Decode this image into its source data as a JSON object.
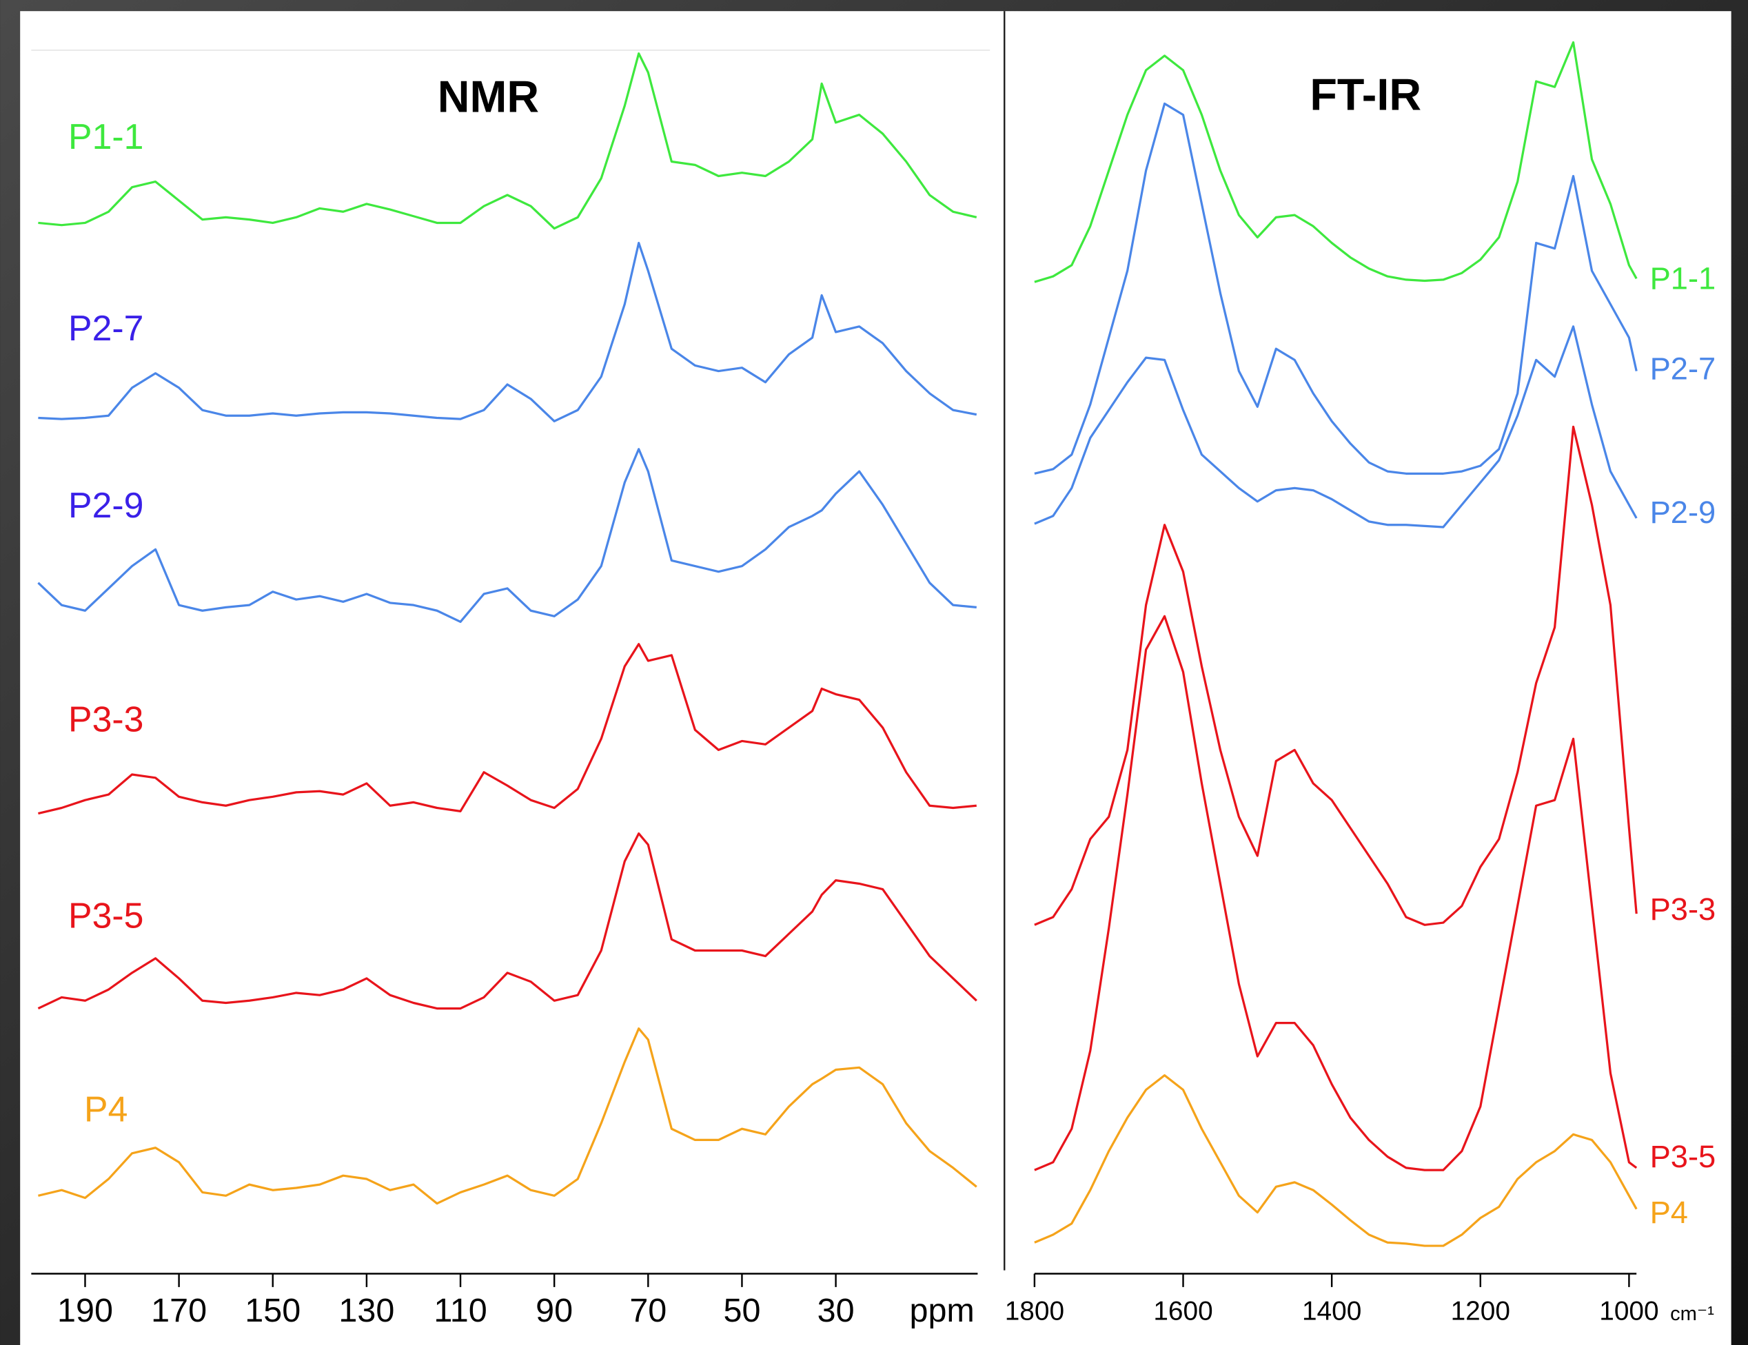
{
  "chart_data": [
    {
      "type": "line",
      "title": "NMR",
      "xlabel": "ppm",
      "x": [
        200,
        195,
        190,
        185,
        180,
        175,
        170,
        165,
        160,
        155,
        150,
        145,
        140,
        135,
        130,
        125,
        120,
        115,
        110,
        105,
        100,
        95,
        90,
        85,
        80,
        75,
        72,
        70,
        65,
        60,
        55,
        50,
        45,
        40,
        35,
        33,
        30,
        25,
        20,
        15,
        10,
        5,
        0
      ],
      "xlim": [
        201,
        0
      ],
      "xticks": [
        190,
        170,
        150,
        130,
        110,
        90,
        70,
        50,
        30
      ],
      "ylim": [
        0,
        1103
      ],
      "series": [
        {
          "name": "P1-1",
          "color": "#3ee83e",
          "label_color": "#3ee83e",
          "values": [
            943,
            941,
            943,
            953,
            975,
            980,
            963,
            946,
            948,
            946,
            943,
            948,
            956,
            953,
            960,
            955,
            949,
            943,
            943,
            958,
            968,
            958,
            938,
            948,
            983,
            1048,
            1095,
            1078,
            998,
            995,
            985,
            988,
            985,
            998,
            1018,
            1068,
            1033,
            1040,
            1023,
            998,
            968,
            953,
            948
          ]
        },
        {
          "name": "P2-7",
          "color": "#4a86e8",
          "label_color": "#3a20e8",
          "values": [
            768,
            767,
            768,
            770,
            795,
            808,
            795,
            775,
            770,
            770,
            772,
            770,
            772,
            773,
            773,
            772,
            770,
            768,
            767,
            775,
            798,
            785,
            765,
            775,
            805,
            870,
            925,
            900,
            830,
            815,
            810,
            813,
            800,
            825,
            840,
            878,
            845,
            850,
            835,
            810,
            790,
            775,
            771
          ]
        },
        {
          "name": "P2-9",
          "color": "#4a86e8",
          "label_color": "#3a20e8",
          "values": [
            620,
            600,
            595,
            615,
            635,
            650,
            600,
            595,
            598,
            600,
            612,
            605,
            608,
            603,
            610,
            602,
            600,
            595,
            585,
            610,
            615,
            595,
            590,
            605,
            635,
            710,
            740,
            720,
            640,
            635,
            630,
            635,
            650,
            670,
            680,
            685,
            700,
            720,
            690,
            655,
            620,
            600,
            598
          ]
        },
        {
          "name": "P3-3",
          "color": "#e8141b",
          "label_color": "#e8141b",
          "values": [
            413,
            418,
            425,
            430,
            448,
            445,
            428,
            423,
            420,
            425,
            428,
            432,
            433,
            430,
            440,
            420,
            423,
            418,
            415,
            450,
            438,
            425,
            418,
            435,
            480,
            545,
            565,
            550,
            555,
            488,
            470,
            478,
            475,
            490,
            505,
            525,
            520,
            515,
            490,
            450,
            420,
            418,
            420
          ]
        },
        {
          "name": "P3-5",
          "color": "#e8141b",
          "label_color": "#e8141b",
          "values": [
            238,
            248,
            245,
            255,
            270,
            283,
            265,
            245,
            243,
            245,
            248,
            252,
            250,
            255,
            265,
            250,
            243,
            238,
            238,
            248,
            270,
            262,
            245,
            250,
            290,
            370,
            395,
            385,
            300,
            290,
            290,
            290,
            285,
            305,
            325,
            340,
            353,
            350,
            345,
            315,
            285,
            265,
            245
          ]
        },
        {
          "name": "P4",
          "color": "#f5a31a",
          "label_color": "#f5a31a",
          "values": [
            70,
            75,
            68,
            85,
            108,
            113,
            100,
            73,
            70,
            80,
            75,
            77,
            80,
            88,
            85,
            75,
            80,
            63,
            73,
            80,
            88,
            75,
            70,
            85,
            135,
            190,
            220,
            210,
            130,
            120,
            120,
            130,
            125,
            150,
            170,
            175,
            183,
            185,
            170,
            135,
            110,
            95,
            78
          ]
        }
      ]
    },
    {
      "type": "line",
      "title": "FT-IR",
      "xlabel": "cm⁻¹",
      "x": [
        1800,
        1775,
        1750,
        1725,
        1700,
        1675,
        1650,
        1625,
        1600,
        1575,
        1550,
        1525,
        1500,
        1475,
        1450,
        1425,
        1400,
        1375,
        1350,
        1325,
        1300,
        1275,
        1250,
        1225,
        1200,
        1175,
        1150,
        1125,
        1100,
        1075,
        1050,
        1025,
        1000,
        990
      ],
      "xlim": [
        1800,
        990
      ],
      "xticks": [
        1800,
        1600,
        1400,
        1200,
        1000
      ],
      "ylim": [
        0,
        1103
      ],
      "series": [
        {
          "name": "P1-1",
          "color": "#3ee83e",
          "values": [
            890,
            895,
            905,
            940,
            990,
            1040,
            1080,
            1093,
            1080,
            1040,
            990,
            950,
            930,
            948,
            950,
            940,
            925,
            912,
            902,
            895,
            892,
            891,
            892,
            898,
            910,
            930,
            980,
            1070,
            1065,
            1105,
            1000,
            960,
            905,
            893
          ]
        },
        {
          "name": "P2-7",
          "color": "#4a86e8",
          "values": [
            718,
            722,
            735,
            780,
            840,
            900,
            990,
            1050,
            1040,
            960,
            880,
            810,
            778,
            830,
            820,
            790,
            765,
            745,
            728,
            720,
            718,
            718,
            718,
            720,
            725,
            740,
            790,
            925,
            920,
            985,
            900,
            870,
            840,
            810
          ]
        },
        {
          "name": "P2-9",
          "color": "#4a86e8",
          "values": [
            673,
            680,
            705,
            750,
            775,
            800,
            822,
            820,
            775,
            735,
            720,
            705,
            693,
            703,
            705,
            703,
            695,
            685,
            675,
            672,
            672,
            671,
            670,
            690,
            710,
            730,
            770,
            820,
            805,
            850,
            780,
            720,
            690,
            678
          ]
        },
        {
          "name": "P3-3",
          "color": "#e8141b",
          "values": [
            313,
            320,
            345,
            390,
            410,
            470,
            600,
            672,
            630,
            545,
            470,
            410,
            375,
            460,
            470,
            440,
            425,
            400,
            375,
            350,
            320,
            313,
            315,
            330,
            365,
            390,
            450,
            530,
            580,
            760,
            690,
            600,
            400,
            323
          ]
        },
        {
          "name": "P3-5",
          "color": "#e8141b",
          "values": [
            93,
            100,
            130,
            200,
            310,
            430,
            560,
            590,
            540,
            440,
            350,
            260,
            195,
            225,
            225,
            205,
            170,
            140,
            120,
            105,
            95,
            93,
            93,
            110,
            150,
            240,
            330,
            420,
            425,
            480,
            330,
            180,
            100,
            95
          ]
        },
        {
          "name": "P4",
          "color": "#f5a31a",
          "values": [
            28,
            35,
            45,
            75,
            110,
            140,
            165,
            178,
            165,
            130,
            100,
            70,
            55,
            78,
            82,
            75,
            62,
            48,
            35,
            28,
            27,
            25,
            25,
            35,
            50,
            60,
            85,
            100,
            110,
            125,
            120,
            100,
            70,
            58
          ]
        }
      ]
    }
  ]
}
